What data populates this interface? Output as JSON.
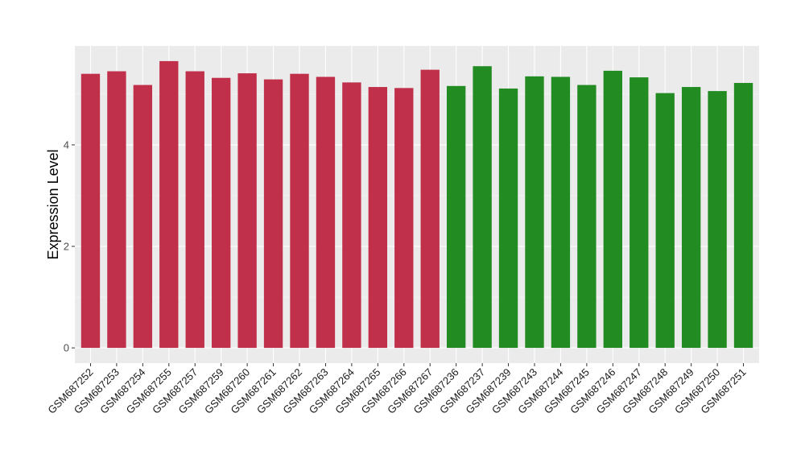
{
  "chart_data": {
    "type": "bar",
    "ylabel": "Expression Level",
    "xlabel": "",
    "title": "",
    "ylim": [
      -0.3,
      5.95
    ],
    "yticks": [
      0,
      2,
      4
    ],
    "ytick_labels": [
      "0",
      "2",
      "4"
    ],
    "grid": true,
    "panel_background": "#ebebeb",
    "categories": [
      "GSM687252",
      "GSM687253",
      "GSM687254",
      "GSM687255",
      "GSM687257",
      "GSM687259",
      "GSM687260",
      "GSM687261",
      "GSM687262",
      "GSM687263",
      "GSM687264",
      "GSM687265",
      "GSM687266",
      "GSM687267",
      "GSM687236",
      "GSM687237",
      "GSM687239",
      "GSM687243",
      "GSM687244",
      "GSM687245",
      "GSM687246",
      "GSM687247",
      "GSM687248",
      "GSM687249",
      "GSM687250",
      "GSM687251"
    ],
    "values": [
      5.4,
      5.45,
      5.18,
      5.65,
      5.45,
      5.32,
      5.41,
      5.29,
      5.4,
      5.34,
      5.23,
      5.14,
      5.12,
      5.48,
      5.16,
      5.55,
      5.11,
      5.35,
      5.34,
      5.18,
      5.46,
      5.33,
      5.02,
      5.14,
      5.06,
      5.22
    ],
    "bar_colors": [
      "#c0304a",
      "#c0304a",
      "#c0304a",
      "#c0304a",
      "#c0304a",
      "#c0304a",
      "#c0304a",
      "#c0304a",
      "#c0304a",
      "#c0304a",
      "#c0304a",
      "#c0304a",
      "#c0304a",
      "#c0304a",
      "#228b22",
      "#228b22",
      "#228b22",
      "#228b22",
      "#228b22",
      "#228b22",
      "#228b22",
      "#228b22",
      "#228b22",
      "#228b22",
      "#228b22",
      "#228b22"
    ]
  }
}
